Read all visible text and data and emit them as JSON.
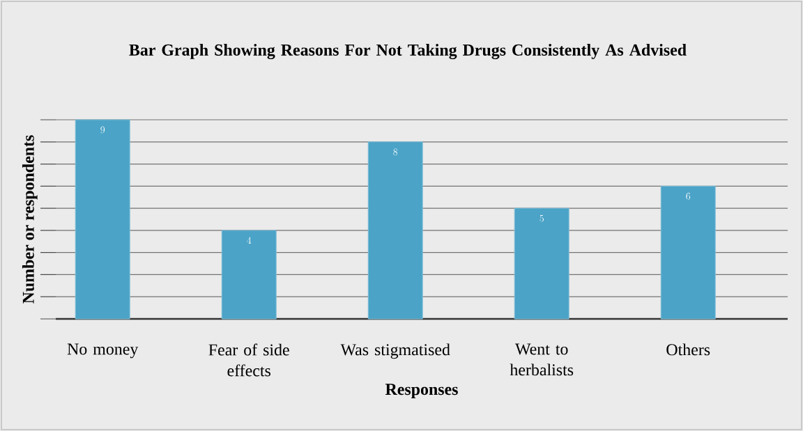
{
  "chart_data": {
    "type": "bar",
    "title": "Bar Graph Showing Reasons For Not Taking Drugs Consistently As Advised",
    "xlabel": "Responses",
    "ylabel": "Number or respondents",
    "categories": [
      "No money",
      "Fear of side effects",
      "Was stigmatised",
      "Went to herbalists",
      "Others"
    ],
    "values": [
      9,
      4,
      8,
      5,
      6
    ],
    "color": "#4ba3c7",
    "data_labels": true,
    "grid": "y",
    "tick_labels": "x",
    "ylim": [
      0,
      9
    ],
    "yticks": [
      {
        "value": 0,
        "label": null
      },
      {
        "value": 1,
        "label": null
      },
      {
        "value": 2,
        "label": null
      },
      {
        "value": 3,
        "label": null
      },
      {
        "value": 4,
        "label": null
      },
      {
        "value": 5,
        "label": null
      },
      {
        "value": 6,
        "label": null
      },
      {
        "value": 7,
        "label": null
      },
      {
        "value": 8,
        "label": null
      },
      {
        "value": 9,
        "label": null
      }
    ]
  }
}
